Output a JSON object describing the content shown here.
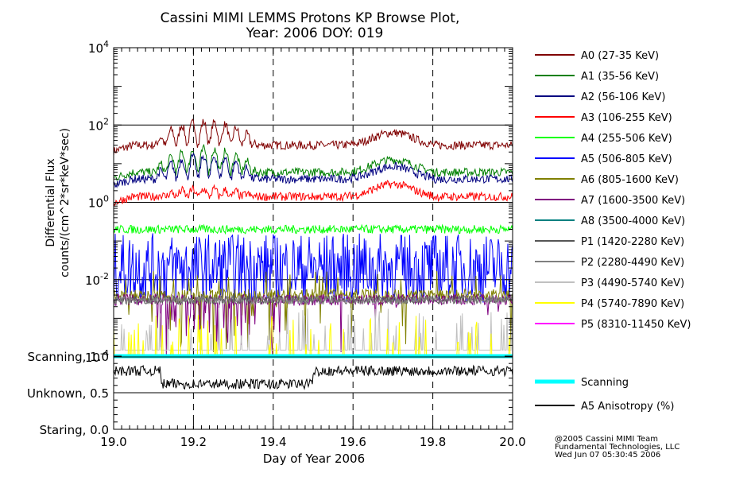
{
  "chart_data": {
    "type": "line",
    "title_line1": "Cassini MIMI LEMMS Protons KP Browse Plot,",
    "title_line2": "Year: 2006 DOY: 019",
    "xlabel": "Day of Year 2006",
    "ylabel_line1": "Differential Flux",
    "ylabel_line2": "counts/(cm^2*sr*keV*sec)",
    "xlim": [
      19.0,
      20.0
    ],
    "x_ticks": [
      "19.0",
      "19.2",
      "19.4",
      "19.6",
      "19.8",
      "20.0"
    ],
    "x_tick_values": [
      19.0,
      19.2,
      19.4,
      19.6,
      19.8,
      20.0
    ],
    "y_scale": "log",
    "ylim": [
      0.0001,
      10000
    ],
    "y_ticks": [
      {
        "base": "10",
        "exp": "4",
        "value": 10000
      },
      {
        "base": "10",
        "exp": "2",
        "value": 100
      },
      {
        "base": "10",
        "exp": "0",
        "value": 1
      },
      {
        "base": "10",
        "exp": "-2",
        "value": 0.01
      },
      {
        "base": "10",
        "exp": "-4",
        "value": 0.0001
      }
    ],
    "bottom_panel_labels": [
      {
        "text": "Scanning, 1.0",
        "value": 1.0
      },
      {
        "text": "Unknown, 0.5",
        "value": 0.5
      },
      {
        "text": "Staring, 0.0",
        "value": 0.0
      }
    ],
    "series": [
      {
        "name": "A0 (27-35 KeV)",
        "color": "#800000",
        "base_value": 30
      },
      {
        "name": "A1 (35-56 KeV)",
        "color": "#008000",
        "base_value": 6
      },
      {
        "name": "A2 (56-106 KeV)",
        "color": "#000080",
        "base_value": 4
      },
      {
        "name": "A3 (106-255 KeV)",
        "color": "#ff0000",
        "base_value": 1.4
      },
      {
        "name": "A4 (255-506 KeV)",
        "color": "#00ff00",
        "base_value": 0.2
      },
      {
        "name": "A5 (506-805 KeV)",
        "color": "#0000ff",
        "base_value": 0.02
      },
      {
        "name": "A6 (805-1600 KeV)",
        "color": "#808000",
        "base_value": 0.004
      },
      {
        "name": "A7 (1600-3500 KeV)",
        "color": "#800080",
        "base_value": 0.003
      },
      {
        "name": "A8 (3500-4000 KeV)",
        "color": "#008080",
        "base_value": 0.003
      },
      {
        "name": "P1 (1420-2280 KeV)",
        "color": "#555555",
        "base_value": 0.003
      },
      {
        "name": "P2 (2280-4490 KeV)",
        "color": "#808080",
        "base_value": 0.003
      },
      {
        "name": "P3 (4490-5740 KeV)",
        "color": "#c0c0c0",
        "base_value": 0.0003
      },
      {
        "name": "P4 (5740-7890 KeV)",
        "color": "#ffff00",
        "base_value": 0.0002
      },
      {
        "name": "P5 (8310-11450 KeV)",
        "color": "#ff00ff",
        "base_value": 0.0001
      }
    ],
    "lower_series": [
      {
        "name": "Scanning",
        "color": "#00ffff",
        "value": 1.0
      },
      {
        "name": "A5 Anisotropy (%)",
        "color": "#000000",
        "value": 0.8
      }
    ]
  },
  "credits": {
    "line1": "@2005 Cassini MIMI Team",
    "line2": "Fundamental Technologies, LLC",
    "line3": "Wed Jun 07 05:30:45 2006"
  }
}
